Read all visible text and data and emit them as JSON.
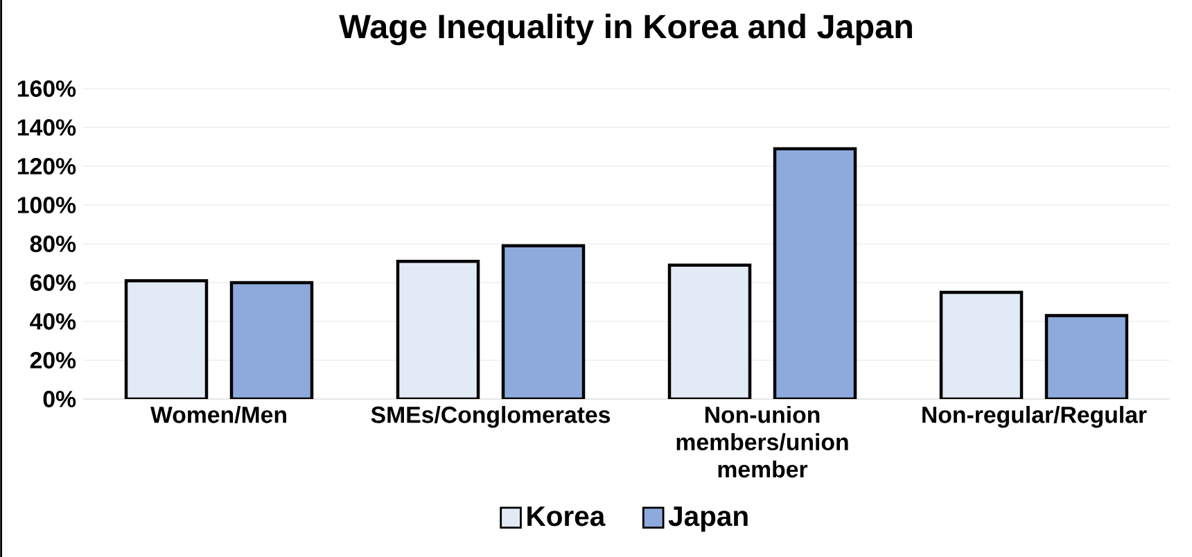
{
  "chart_data": {
    "type": "bar",
    "title": "Wage Inequality in Korea and Japan",
    "categories": [
      "Women/Men",
      "SMEs/Conglomerates",
      "Non-union members/union member",
      "Non-regular/Regular"
    ],
    "series": [
      {
        "name": "Korea",
        "color": "#e2eaf5",
        "values": [
          61,
          71,
          69,
          55
        ]
      },
      {
        "name": "Japan",
        "color": "#8eaadc",
        "values": [
          60,
          79,
          129,
          43
        ]
      }
    ],
    "ylim": [
      0,
      160
    ],
    "yticks": [
      {
        "value": 0,
        "label": "0%"
      },
      {
        "value": 20,
        "label": "20%"
      },
      {
        "value": 40,
        "label": "40%"
      },
      {
        "value": 60,
        "label": "60%"
      },
      {
        "value": 80,
        "label": "80%"
      },
      {
        "value": 100,
        "label": "100%"
      },
      {
        "value": 120,
        "label": "120%"
      },
      {
        "value": 140,
        "label": "140%"
      },
      {
        "value": 160,
        "label": "160%"
      }
    ],
    "grid": "y",
    "legend": "bottom"
  }
}
